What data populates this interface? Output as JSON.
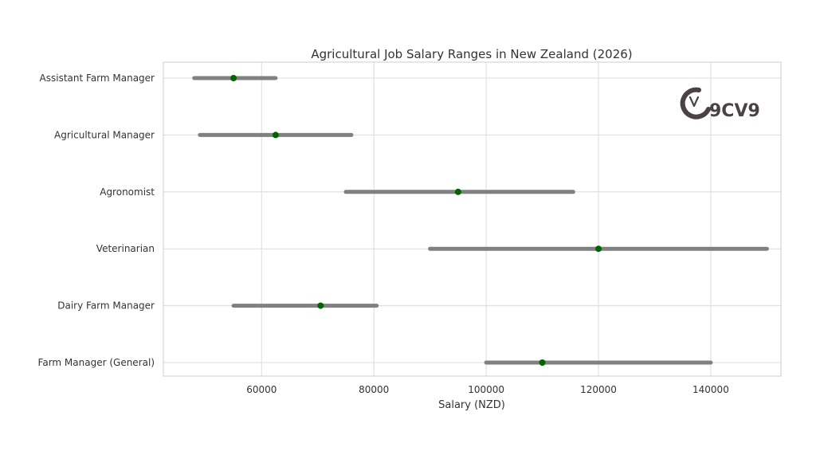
{
  "chart_data": {
    "type": "dumbbell",
    "title": "Agricultural Job Salary Ranges in New Zealand (2026)",
    "xlabel": "Salary (NZD)",
    "ylabel": "",
    "xlim": [
      42500,
      152500
    ],
    "xticks": [
      60000,
      80000,
      100000,
      120000,
      140000
    ],
    "grid": true,
    "categories": [
      "Assistant Farm Manager",
      "Agricultural Manager",
      "Agronomist",
      "Veterinarian",
      "Dairy Farm Manager",
      "Farm Manager (General)"
    ],
    "ranges": [
      {
        "min": 48000,
        "max": 62500,
        "mid": 55000
      },
      {
        "min": 49000,
        "max": 76000,
        "mid": 62500
      },
      {
        "min": 75000,
        "max": 115500,
        "mid": 95000
      },
      {
        "min": 90000,
        "max": 150000,
        "mid": 120000
      },
      {
        "min": 55000,
        "max": 80500,
        "mid": 70500
      },
      {
        "min": 100000,
        "max": 140000,
        "mid": 110000
      }
    ],
    "colors": {
      "range": "#808080",
      "midpoint": "#006400",
      "grid": "#dcdcdc"
    }
  },
  "logo": {
    "text": "9CV9",
    "color": "#4a4244"
  }
}
